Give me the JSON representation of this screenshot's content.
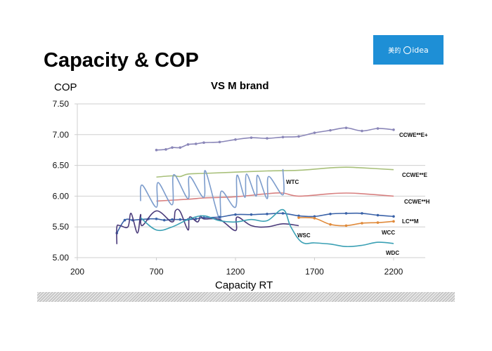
{
  "slide": {
    "title": "Capacity & COP",
    "logo": {
      "cn_text": "美的",
      "text": "idea",
      "brand": "Midea",
      "color": "#1e8fd6"
    }
  },
  "chart_data": {
    "type": "line",
    "title": "VS M brand",
    "xlabel": "Capacity RT",
    "ylabel": "COP",
    "xlim": [
      200,
      2400
    ],
    "ylim": [
      5.0,
      7.5
    ],
    "xticks": [
      200,
      700,
      1200,
      1700,
      2200
    ],
    "xtick_labels": [
      "200",
      "700",
      "1200",
      "1700",
      "2200"
    ],
    "yticks": [
      5.0,
      5.5,
      6.0,
      6.5,
      7.0,
      7.5
    ],
    "ytick_labels": [
      "5.00",
      "5.50",
      "6.00",
      "6.50",
      "7.00",
      "7.50"
    ],
    "grid": "horizontal",
    "legend": "inline-labels-right",
    "series": [
      {
        "name": "CCWE**E+",
        "color": "#8a86b8",
        "markers": true,
        "x": [
          700,
          760,
          800,
          850,
          900,
          950,
          1000,
          1100,
          1200,
          1300,
          1400,
          1500,
          1600,
          1700,
          1800,
          1900,
          2000,
          2100,
          2200
        ],
        "y": [
          6.75,
          6.76,
          6.79,
          6.79,
          6.84,
          6.85,
          6.87,
          6.88,
          6.92,
          6.95,
          6.94,
          6.96,
          6.97,
          7.03,
          7.07,
          7.11,
          7.06,
          7.1,
          7.08
        ]
      },
      {
        "name": "CCWE**E",
        "color": "#a8c07a",
        "markers": false,
        "x": [
          700,
          800,
          850,
          900,
          1000,
          1200,
          1400,
          1600,
          1800,
          1900,
          2000,
          2200
        ],
        "y": [
          6.31,
          6.33,
          6.32,
          6.36,
          6.37,
          6.39,
          6.41,
          6.42,
          6.46,
          6.47,
          6.46,
          6.43
        ]
      },
      {
        "name": "CCWE**H",
        "color": "#d88080",
        "markers": false,
        "x": [
          700,
          900,
          1000,
          1200,
          1400,
          1500,
          1600,
          1800,
          1900,
          2000,
          2200
        ],
        "y": [
          5.92,
          5.95,
          5.97,
          5.99,
          6.04,
          6.05,
          6.0,
          6.04,
          6.05,
          6.04,
          6.0
        ]
      },
      {
        "name": "WTC",
        "color": "#7c9ccc",
        "markers": false,
        "x": [
          600,
          610,
          700,
          710,
          800,
          810,
          900,
          910,
          1000,
          1010,
          1100,
          1110,
          1200,
          1210,
          1260,
          1270,
          1330,
          1340,
          1400,
          1410,
          1500,
          1500
        ],
        "y": [
          5.92,
          6.18,
          5.82,
          6.22,
          5.86,
          6.35,
          5.96,
          6.32,
          5.98,
          6.41,
          5.62,
          6.08,
          5.82,
          6.34,
          5.98,
          6.36,
          6.0,
          6.34,
          5.96,
          6.32,
          6.02,
          6.44
        ]
      },
      {
        "name": "LC**M",
        "color": "#3a62a8",
        "markers": true,
        "x": [
          450,
          500,
          550,
          600,
          650,
          700,
          750,
          800,
          850,
          900,
          950,
          1000,
          1100,
          1200,
          1300,
          1400,
          1500,
          1600,
          1700,
          1800,
          1900,
          2000,
          2100,
          2200
        ],
        "y": [
          5.4,
          5.61,
          5.61,
          5.62,
          5.63,
          5.63,
          5.61,
          5.62,
          5.62,
          5.62,
          5.63,
          5.65,
          5.66,
          5.7,
          5.7,
          5.71,
          5.72,
          5.68,
          5.67,
          5.71,
          5.72,
          5.72,
          5.69,
          5.67
        ]
      },
      {
        "name": "WCC",
        "color": "#e08a3a",
        "markers": true,
        "x": [
          1600,
          1700,
          1800,
          1900,
          2000,
          2100,
          2200
        ],
        "y": [
          5.65,
          5.64,
          5.54,
          5.52,
          5.56,
          5.57,
          5.59
        ]
      },
      {
        "name": "WSC",
        "color": "#4a3a7a",
        "markers": false,
        "x": [
          450,
          450,
          470,
          520,
          540,
          580,
          600,
          610,
          700,
          800,
          820,
          850,
          900,
          910,
          960,
          980,
          1000,
          1100,
          1200,
          1210,
          1300,
          1400,
          1500,
          1600
        ],
        "y": [
          5.22,
          5.5,
          5.52,
          5.5,
          5.72,
          5.4,
          5.7,
          5.52,
          5.76,
          5.58,
          5.76,
          5.75,
          5.45,
          5.66,
          5.58,
          5.68,
          5.63,
          5.62,
          5.44,
          5.66,
          5.52,
          5.5,
          5.55,
          5.52
        ]
      },
      {
        "name": "WDC",
        "color": "#3aa0b4",
        "markers": false,
        "x": [
          600,
          700,
          800,
          900,
          1000,
          1100,
          1200,
          1300,
          1400,
          1500,
          1550,
          1620,
          1700,
          1800,
          1900,
          2000,
          2100,
          2200
        ],
        "y": [
          5.65,
          5.45,
          5.5,
          5.62,
          5.68,
          5.6,
          5.58,
          5.62,
          5.6,
          5.78,
          5.5,
          5.25,
          5.24,
          5.22,
          5.18,
          5.2,
          5.25,
          5.23
        ]
      }
    ],
    "annotations": [
      {
        "text": "CCWE**E+",
        "series": "CCWE**E+"
      },
      {
        "text": "CCWE**E",
        "series": "CCWE**E"
      },
      {
        "text": "WTC",
        "series": "WTC"
      },
      {
        "text": "CCWE**H",
        "series": "CCWE**H"
      },
      {
        "text": "LC**M",
        "series": "LC**M"
      },
      {
        "text": "WCC",
        "series": "WCC"
      },
      {
        "text": "WSC",
        "series": "WSC"
      },
      {
        "text": "WDC",
        "series": "WDC"
      }
    ]
  }
}
